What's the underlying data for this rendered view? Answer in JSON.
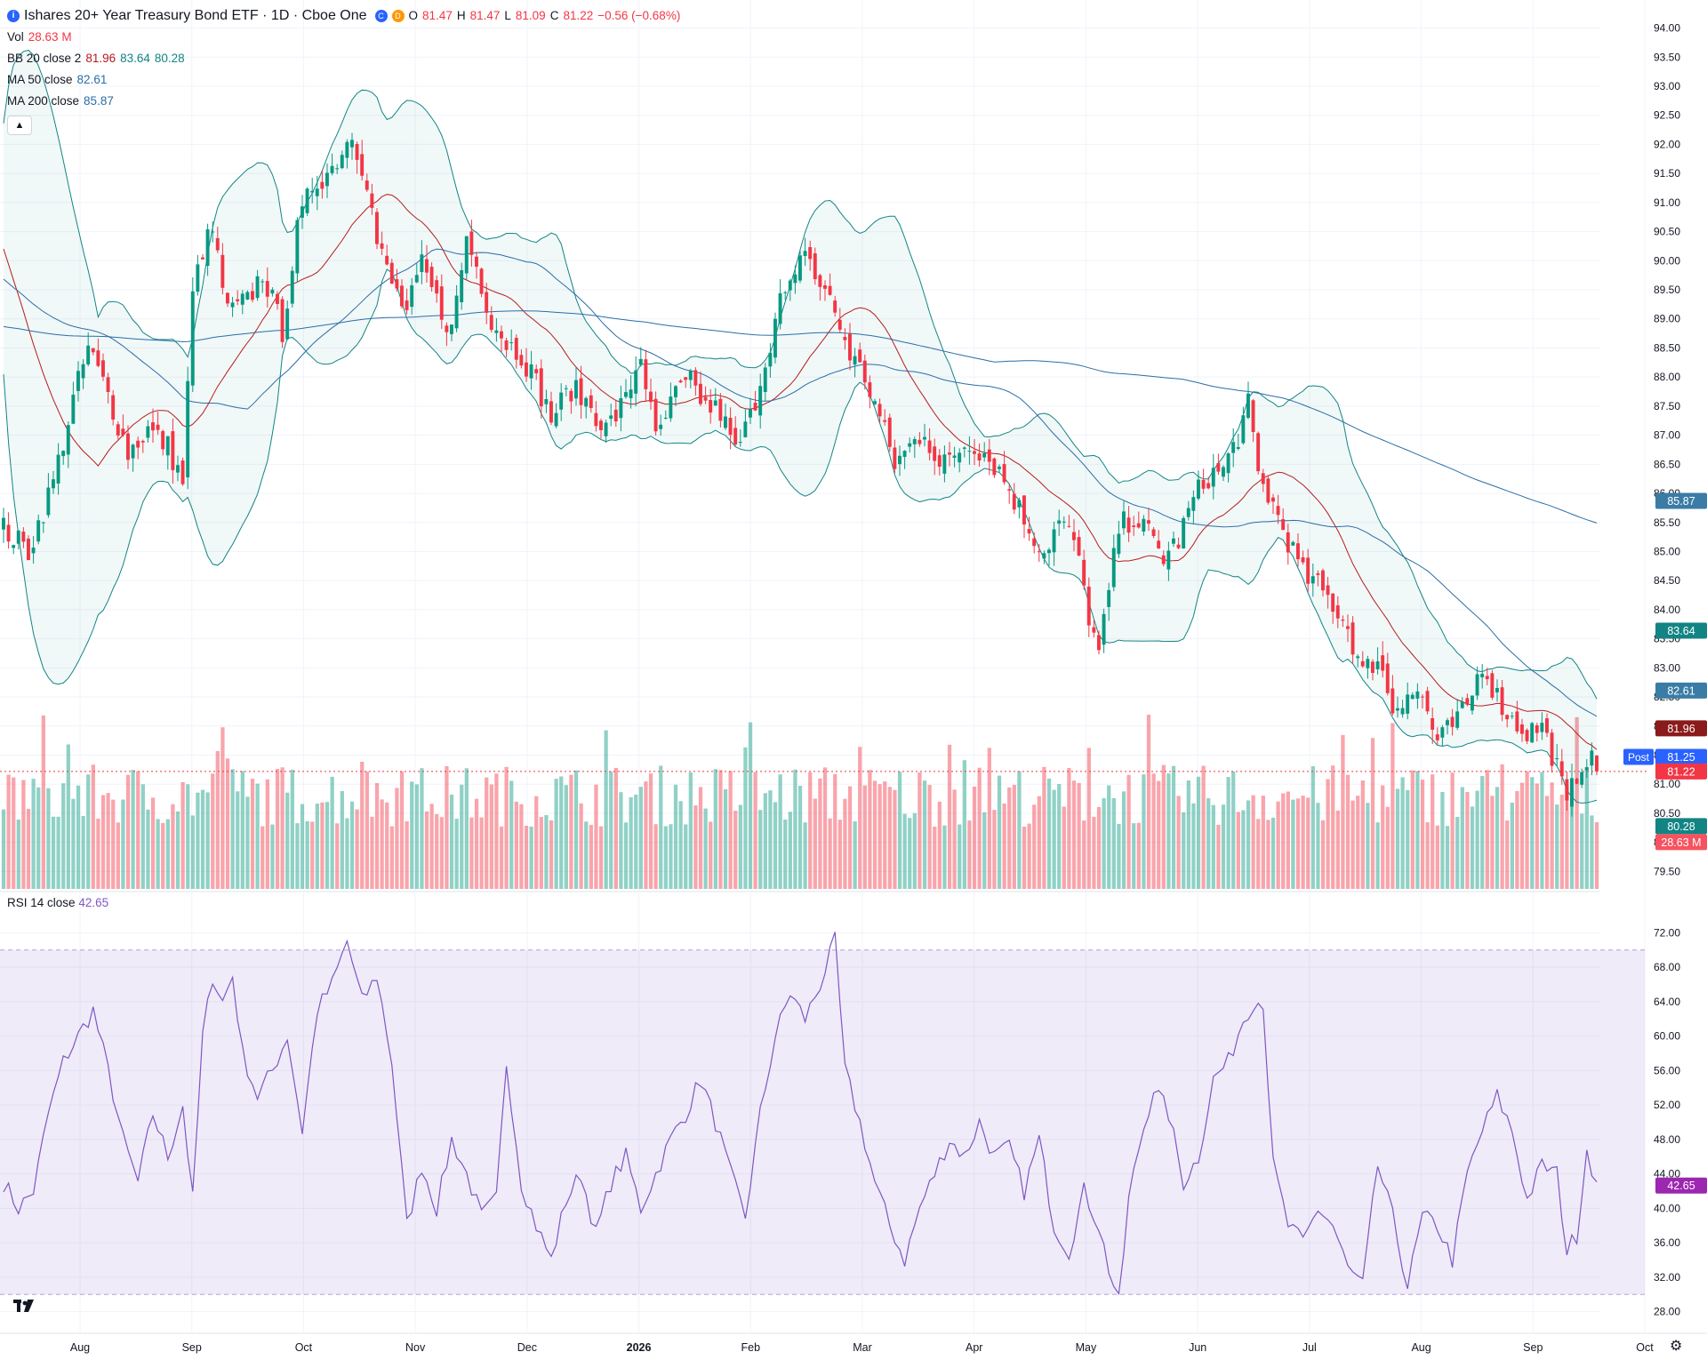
{
  "header": {
    "symbol_icon": "i",
    "title": "Ishares 20+ Year Treasury Bond ETF · 1D · Cboe One",
    "badge_c": "C",
    "badge_d": "D",
    "open_label": "O",
    "open_value": "81.47",
    "high_label": "H",
    "high_value": "81.47",
    "low_label": "L",
    "low_value": "81.09",
    "close_label": "C",
    "close_value": "81.22",
    "change_value": "−0.56 (−0.68%)"
  },
  "indicators": {
    "vol_label": "Vol",
    "vol_value": "28.63 M",
    "bb_label": "BB 20 close 2",
    "bb_basis": "81.96",
    "bb_upper": "83.64",
    "bb_lower": "80.28",
    "ma50_label": "MA 50 close",
    "ma50_value": "82.61",
    "ma200_label": "MA 200 close",
    "ma200_value": "85.87",
    "collapse_icon": "chevron-up-icon",
    "rsi_label": "RSI 14 close",
    "rsi_value": "42.65"
  },
  "colors": {
    "up": "#089981",
    "down": "#f23645",
    "bb_basis": "#b71c1c",
    "bb_band": "#138484",
    "ma50": "#2a6ea6",
    "ma200": "#2a6ea6",
    "rsi": "#7e57c2"
  },
  "chart_data": [
    {
      "type": "candlestick",
      "title": "Ishares 20+ Year Treasury Bond ETF · 1D · Cboe One",
      "ylim": [
        79.2,
        94.1
      ],
      "y_ticks": [
        "94.00",
        "93.50",
        "93.00",
        "92.50",
        "92.00",
        "91.50",
        "91.00",
        "90.50",
        "90.00",
        "89.50",
        "89.00",
        "88.50",
        "88.00",
        "87.50",
        "87.00",
        "86.50",
        "86.00",
        "85.50",
        "85.00",
        "84.50",
        "84.00",
        "83.50",
        "83.00",
        "82.50",
        "82.00",
        "81.50",
        "81.00",
        "80.50",
        "80.00",
        "79.50"
      ],
      "x_ticks": [
        "Aug",
        "Sep",
        "Oct",
        "Nov",
        "Dec",
        "2026",
        "Feb",
        "Mar",
        "Apr",
        "May",
        "Jun",
        "Jul",
        "Aug",
        "Sep",
        "Oct"
      ],
      "close_path": [
        [
          0,
          85.4
        ],
        [
          5,
          85.0
        ],
        [
          10,
          86.2
        ],
        [
          14,
          87.6
        ],
        [
          17,
          88.5
        ],
        [
          21,
          87.7
        ],
        [
          25,
          86.7
        ],
        [
          29,
          87.1
        ],
        [
          33,
          86.8
        ],
        [
          36,
          86.2
        ],
        [
          38,
          89.4
        ],
        [
          40,
          90.2
        ],
        [
          42,
          90.5
        ],
        [
          45,
          89.1
        ],
        [
          49,
          89.3
        ],
        [
          52,
          89.8
        ],
        [
          56,
          88.8
        ],
        [
          59,
          90.5
        ],
        [
          62,
          91.3
        ],
        [
          66,
          91.6
        ],
        [
          70,
          92.2
        ],
        [
          73,
          91.4
        ],
        [
          75,
          90.3
        ],
        [
          78,
          89.6
        ],
        [
          81,
          89.1
        ],
        [
          84,
          89.9
        ],
        [
          87,
          89.3
        ],
        [
          90,
          88.8
        ],
        [
          93,
          90.4
        ],
        [
          95,
          89.9
        ],
        [
          98,
          89.0
        ],
        [
          101,
          88.6
        ],
        [
          104,
          88.4
        ],
        [
          107,
          87.9
        ],
        [
          110,
          87.3
        ],
        [
          114,
          87.8
        ],
        [
          118,
          87.5
        ],
        [
          121,
          87.1
        ],
        [
          125,
          87.6
        ],
        [
          128,
          88.4
        ],
        [
          131,
          86.9
        ],
        [
          135,
          87.7
        ],
        [
          138,
          87.9
        ],
        [
          141,
          87.5
        ],
        [
          144,
          87.4
        ],
        [
          147,
          86.7
        ],
        [
          150,
          87.3
        ],
        [
          153,
          88.3
        ],
        [
          156,
          89.3
        ],
        [
          159,
          89.6
        ],
        [
          161,
          90.3
        ],
        [
          163,
          89.7
        ],
        [
          165,
          89.5
        ],
        [
          167,
          89.1
        ],
        [
          170,
          88.4
        ],
        [
          173,
          88.0
        ],
        [
          176,
          87.3
        ],
        [
          179,
          86.5
        ],
        [
          182,
          86.8
        ],
        [
          185,
          87.1
        ],
        [
          188,
          86.4
        ],
        [
          191,
          86.7
        ],
        [
          194,
          86.9
        ],
        [
          197,
          86.7
        ],
        [
          200,
          86.4
        ],
        [
          203,
          85.9
        ],
        [
          206,
          85.4
        ],
        [
          209,
          85.0
        ],
        [
          212,
          85.5
        ],
        [
          215,
          85.2
        ],
        [
          218,
          83.9
        ],
        [
          220,
          83.2
        ],
        [
          222,
          84.3
        ],
        [
          224,
          85.4
        ],
        [
          227,
          85.6
        ],
        [
          230,
          85.3
        ],
        [
          233,
          84.9
        ],
        [
          236,
          85.2
        ],
        [
          239,
          85.9
        ],
        [
          242,
          86.3
        ],
        [
          245,
          86.4
        ],
        [
          248,
          87.0
        ],
        [
          250,
          87.5
        ],
        [
          252,
          86.3
        ],
        [
          255,
          85.8
        ],
        [
          258,
          85.2
        ],
        [
          261,
          84.6
        ],
        [
          264,
          84.4
        ],
        [
          267,
          84.1
        ],
        [
          270,
          83.7
        ],
        [
          273,
          82.9
        ],
        [
          276,
          83.2
        ],
        [
          279,
          82.3
        ],
        [
          282,
          82.6
        ],
        [
          285,
          82.5
        ],
        [
          288,
          81.7
        ],
        [
          291,
          82.0
        ],
        [
          294,
          82.3
        ],
        [
          297,
          83.1
        ],
        [
          300,
          82.5
        ],
        [
          303,
          82.1
        ],
        [
          306,
          81.9
        ],
        [
          309,
          82.0
        ],
        [
          312,
          81.3
        ],
        [
          314,
          80.6
        ],
        [
          316,
          81.2
        ],
        [
          318,
          81.5
        ],
        [
          320,
          81.22
        ]
      ],
      "rsi": {
        "ylim": [
          26,
          74
        ],
        "upper": 70,
        "lower": 30,
        "y_ticks": [
          "72.00",
          "68.00",
          "64.00",
          "60.00",
          "56.00",
          "52.00",
          "48.00",
          "44.00",
          "40.00",
          "36.00",
          "32.00",
          "28.00"
        ],
        "path": [
          [
            0,
            43
          ],
          [
            3,
            40
          ],
          [
            6,
            42
          ],
          [
            9,
            51
          ],
          [
            12,
            57
          ],
          [
            15,
            60
          ],
          [
            18,
            63
          ],
          [
            21,
            56
          ],
          [
            24,
            48
          ],
          [
            27,
            43
          ],
          [
            30,
            51
          ],
          [
            33,
            46
          ],
          [
            36,
            52
          ],
          [
            38,
            41
          ],
          [
            40,
            60
          ],
          [
            42,
            67
          ],
          [
            44,
            64
          ],
          [
            46,
            67
          ],
          [
            48,
            58
          ],
          [
            51,
            53
          ],
          [
            54,
            56
          ],
          [
            57,
            60
          ],
          [
            60,
            49
          ],
          [
            63,
            63
          ],
          [
            66,
            66
          ],
          [
            69,
            71
          ],
          [
            72,
            64
          ],
          [
            75,
            67
          ],
          [
            78,
            57
          ],
          [
            81,
            38
          ],
          [
            84,
            45
          ],
          [
            87,
            40
          ],
          [
            90,
            48
          ],
          [
            93,
            44
          ],
          [
            96,
            39
          ],
          [
            99,
            41
          ],
          [
            101,
            57
          ],
          [
            104,
            43
          ],
          [
            107,
            38
          ],
          [
            110,
            34
          ],
          [
            113,
            41
          ],
          [
            116,
            44
          ],
          [
            119,
            37
          ],
          [
            122,
            43
          ],
          [
            125,
            46
          ],
          [
            128,
            40
          ],
          [
            131,
            44
          ],
          [
            134,
            48
          ],
          [
            137,
            51
          ],
          [
            140,
            55
          ],
          [
            143,
            50
          ],
          [
            146,
            44
          ],
          [
            149,
            39
          ],
          [
            152,
            51
          ],
          [
            155,
            60
          ],
          [
            158,
            65
          ],
          [
            161,
            62
          ],
          [
            164,
            66
          ],
          [
            167,
            71
          ],
          [
            169,
            56
          ],
          [
            172,
            50
          ],
          [
            175,
            43
          ],
          [
            178,
            38
          ],
          [
            181,
            34
          ],
          [
            184,
            40
          ],
          [
            187,
            44
          ],
          [
            190,
            48
          ],
          [
            193,
            46
          ],
          [
            196,
            50
          ],
          [
            199,
            46
          ],
          [
            202,
            47
          ],
          [
            205,
            42
          ],
          [
            208,
            48
          ],
          [
            211,
            38
          ],
          [
            214,
            35
          ],
          [
            217,
            42
          ],
          [
            220,
            38
          ],
          [
            222,
            33
          ],
          [
            224,
            29
          ],
          [
            226,
            41
          ],
          [
            228,
            47
          ],
          [
            231,
            54
          ],
          [
            234,
            51
          ],
          [
            237,
            43
          ],
          [
            240,
            46
          ],
          [
            243,
            55
          ],
          [
            246,
            57
          ],
          [
            249,
            62
          ],
          [
            251,
            64
          ],
          [
            253,
            64
          ],
          [
            255,
            45
          ],
          [
            258,
            38
          ],
          [
            261,
            36
          ],
          [
            264,
            40
          ],
          [
            267,
            38
          ],
          [
            270,
            33
          ],
          [
            273,
            31
          ],
          [
            276,
            45
          ],
          [
            279,
            39
          ],
          [
            282,
            31
          ],
          [
            285,
            39
          ],
          [
            288,
            38
          ],
          [
            291,
            34
          ],
          [
            294,
            44
          ],
          [
            297,
            49
          ],
          [
            300,
            53
          ],
          [
            303,
            49
          ],
          [
            306,
            41
          ],
          [
            309,
            45
          ],
          [
            312,
            44
          ],
          [
            314,
            35
          ],
          [
            316,
            37
          ],
          [
            318,
            47
          ],
          [
            320,
            42.65
          ]
        ]
      }
    }
  ],
  "price_labels": {
    "ma200": "85.87",
    "bb_upper": "83.64",
    "ma50": "82.61",
    "bb_basis": "81.96",
    "post_label": "Post",
    "post_price": "81.25",
    "last_close": "81.22",
    "bb_lower": "80.28",
    "volume": "28.63 M",
    "rsi_last": "42.65"
  },
  "footer": {
    "logo_icon": "tradingview-logo-icon",
    "settings_icon": "gear-icon"
  }
}
